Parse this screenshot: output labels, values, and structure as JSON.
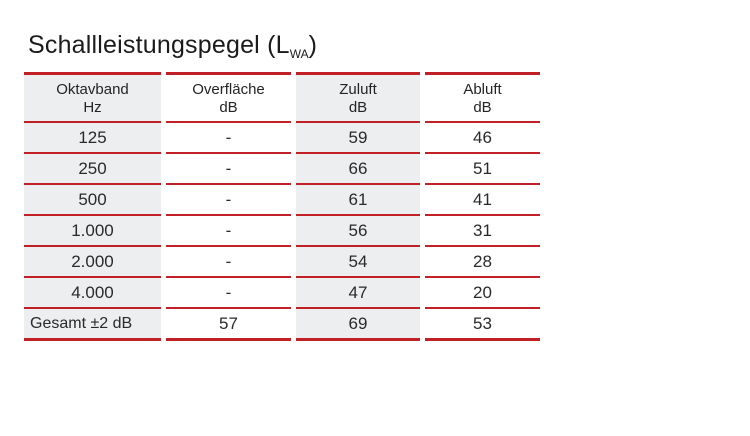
{
  "title": {
    "main": "Schallleistungspegel (L",
    "subscript": "WA",
    "close": ")"
  },
  "colors": {
    "accent_red": "#c12027",
    "cell_gray": "#edeeef",
    "text": "#2a2a2c"
  },
  "table": {
    "columns": [
      {
        "label_line1": "Oktavband",
        "label_line2": "Hz"
      },
      {
        "label_line1": "Overfläche",
        "label_line2": "dB"
      },
      {
        "label_line1": "Zuluft",
        "label_line2": "dB"
      },
      {
        "label_line1": "Abluft",
        "label_line2": "dB"
      }
    ],
    "rows": [
      [
        "125",
        "-",
        "59",
        "46"
      ],
      [
        "250",
        "-",
        "66",
        "51"
      ],
      [
        "500",
        "-",
        "61",
        "41"
      ],
      [
        "1.000",
        "-",
        "56",
        "31"
      ],
      [
        "2.000",
        "-",
        "54",
        "28"
      ],
      [
        "4.000",
        "-",
        "47",
        "20"
      ],
      [
        "Gesamt ±2 dB",
        "57",
        "69",
        "53"
      ]
    ]
  }
}
